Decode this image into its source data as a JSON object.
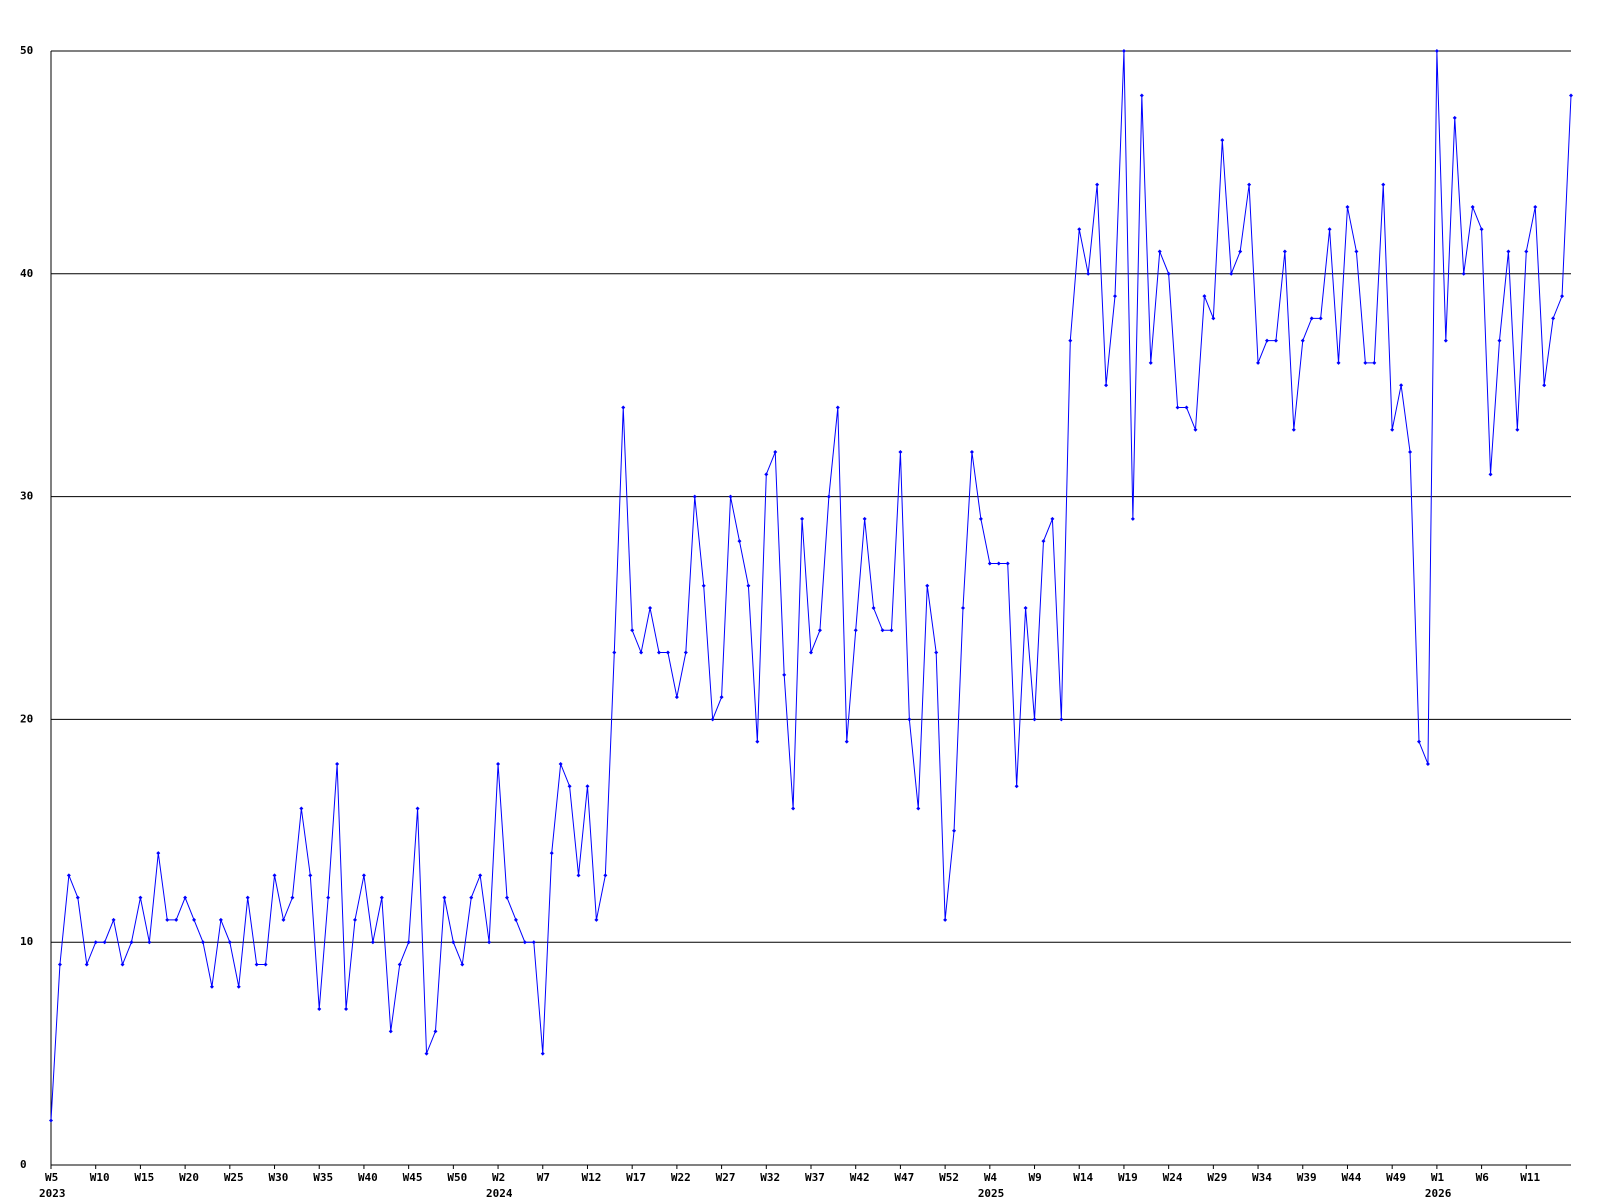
{
  "chart_data": {
    "type": "line",
    "color": "#0000ff",
    "grid": true,
    "ylim": [
      0,
      50
    ],
    "yticks": [
      0,
      10,
      20,
      30,
      40,
      50
    ],
    "categories": [
      "W5",
      null,
      null,
      null,
      null,
      "W10",
      null,
      null,
      null,
      null,
      "W15",
      null,
      null,
      null,
      null,
      "W20",
      null,
      null,
      null,
      null,
      "W25",
      null,
      null,
      null,
      null,
      "W30",
      null,
      null,
      null,
      null,
      "W35",
      null,
      null,
      null,
      null,
      "W40",
      null,
      null,
      null,
      null,
      "W45",
      null,
      null,
      null,
      null,
      "W50",
      null,
      null,
      null,
      null,
      "W2",
      null,
      null,
      null,
      null,
      "W7",
      null,
      null,
      null,
      null,
      "W12",
      null,
      null,
      null,
      null,
      "W17",
      null,
      null,
      null,
      null,
      "W22",
      null,
      null,
      null,
      null,
      "W27",
      null,
      null,
      null,
      null,
      "W32",
      null,
      null,
      null,
      null,
      "W37",
      null,
      null,
      null,
      null,
      "W42",
      null,
      null,
      null,
      null,
      "W47",
      null,
      null,
      null,
      null,
      "W52",
      null,
      null,
      null,
      null,
      "W4",
      null,
      null,
      null,
      null,
      "W9",
      null,
      null,
      null,
      null,
      "W14",
      null,
      null,
      null,
      null,
      "W19",
      null,
      null,
      null,
      null,
      "W24",
      null,
      null,
      null,
      null,
      "W29",
      null,
      null,
      null,
      null,
      "W34",
      null,
      null,
      null,
      null,
      "W39",
      null,
      null,
      null,
      null,
      "W44",
      null,
      null,
      null,
      null,
      "W49",
      null,
      null,
      null,
      null,
      "W1",
      null,
      null,
      null,
      null,
      "W6",
      null,
      null,
      null,
      null,
      "W11",
      null,
      null,
      null,
      null,
      null
    ],
    "year_categories": [
      "2023",
      null,
      null,
      null,
      null,
      null,
      null,
      null,
      null,
      null,
      null,
      null,
      null,
      null,
      null,
      null,
      null,
      null,
      null,
      null,
      null,
      null,
      null,
      null,
      null,
      null,
      null,
      null,
      null,
      null,
      null,
      null,
      null,
      null,
      null,
      null,
      null,
      null,
      null,
      null,
      null,
      null,
      null,
      null,
      null,
      null,
      null,
      null,
      null,
      null,
      "2024",
      null,
      null,
      null,
      null,
      null,
      null,
      null,
      null,
      null,
      null,
      null,
      null,
      null,
      null,
      null,
      null,
      null,
      null,
      null,
      null,
      null,
      null,
      null,
      null,
      null,
      null,
      null,
      null,
      null,
      null,
      null,
      null,
      null,
      null,
      null,
      null,
      null,
      null,
      null,
      null,
      null,
      null,
      null,
      null,
      null,
      null,
      null,
      null,
      null,
      null,
      null,
      null,
      null,
      null,
      "2025",
      null,
      null,
      null,
      null,
      null,
      null,
      null,
      null,
      null,
      null,
      null,
      null,
      null,
      null,
      null,
      null,
      null,
      null,
      null,
      null,
      null,
      null,
      null,
      null,
      null,
      null,
      null,
      null,
      null,
      null,
      null,
      null,
      null,
      null,
      null,
      null,
      null,
      null,
      null,
      null,
      null,
      null,
      null,
      null,
      null,
      null,
      null,
      null,
      null,
      "2026",
      null,
      null,
      null,
      null,
      null,
      null,
      null,
      null,
      null,
      null,
      null,
      null,
      null,
      null,
      null
    ],
    "values": [
      2,
      9,
      13,
      12,
      9,
      10,
      10,
      11,
      9,
      10,
      12,
      10,
      14,
      11,
      11,
      12,
      11,
      10,
      8,
      11,
      10,
      8,
      12,
      9,
      9,
      13,
      11,
      12,
      16,
      13,
      7,
      12,
      18,
      7,
      11,
      13,
      10,
      12,
      6,
      9,
      10,
      16,
      5,
      6,
      12,
      10,
      9,
      12,
      13,
      10,
      18,
      12,
      11,
      10,
      10,
      5,
      14,
      18,
      17,
      13,
      17,
      11,
      13,
      23,
      34,
      24,
      23,
      25,
      23,
      23,
      21,
      23,
      30,
      26,
      20,
      21,
      30,
      28,
      26,
      19,
      31,
      32,
      22,
      16,
      29,
      23,
      24,
      30,
      34,
      19,
      24,
      29,
      25,
      24,
      24,
      32,
      20,
      16,
      26,
      23,
      11,
      15,
      25,
      32,
      29,
      27,
      27,
      27,
      17,
      25,
      20,
      28,
      29,
      20,
      37,
      42,
      40,
      44,
      35,
      39,
      50,
      29,
      48,
      36,
      41,
      40,
      34,
      34,
      33,
      39,
      38,
      46,
      40,
      41,
      44,
      36,
      37,
      37,
      41,
      33,
      37,
      38,
      38,
      42,
      36,
      43,
      41,
      36,
      36,
      44,
      33,
      35,
      32,
      19,
      18,
      50,
      37,
      47,
      40,
      43,
      42,
      31,
      37,
      41,
      33,
      41,
      43,
      35,
      38,
      39,
      48
    ]
  }
}
